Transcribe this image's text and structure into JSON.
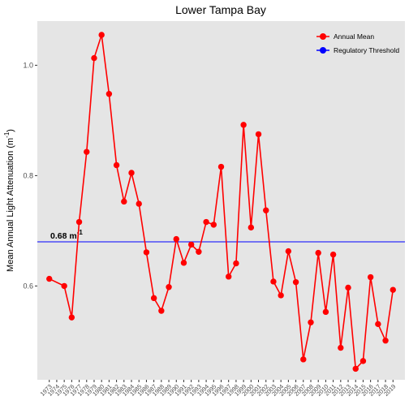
{
  "chart_data": {
    "type": "line",
    "title": "Lower Tampa Bay",
    "xlabel": "",
    "ylabel": "Mean Annual Light Attenuation (m",
    "ylabel_sup": "-1",
    "ylabel_close": ")",
    "x": [
      1974,
      1975,
      1976,
      1977,
      1978,
      1979,
      1980,
      1981,
      1982,
      1983,
      1984,
      1985,
      1986,
      1987,
      1988,
      1989,
      1990,
      1991,
      1992,
      1993,
      1994,
      1995,
      1996,
      1997,
      1998,
      1999,
      2000,
      2001,
      2002,
      2003,
      2004,
      2005,
      2006,
      2007,
      2008,
      2009,
      2010,
      2011,
      2012,
      2013,
      2014,
      2015,
      2016,
      2017,
      2018
    ],
    "x_tick_labels": [
      "1973",
      "1974",
      "1975",
      "1976",
      "1977",
      "1978",
      "1979",
      "1980",
      "1981",
      "1982",
      "1983",
      "1984",
      "1985",
      "1986",
      "1987",
      "1988",
      "1989",
      "1990",
      "1991",
      "1992",
      "1993",
      "1994",
      "1995",
      "1996",
      "1997",
      "1998",
      "1999",
      "2000",
      "2001",
      "2002",
      "2003",
      "2004",
      "2005",
      "2006",
      "2007",
      "2008",
      "2009",
      "2010",
      "2011",
      "2012",
      "2013",
      "2014",
      "2015",
      "2016",
      "2017",
      "2018",
      "2019"
    ],
    "x_tick_values": [
      1973,
      1974,
      1975,
      1976,
      1977,
      1978,
      1979,
      1980,
      1981,
      1982,
      1983,
      1984,
      1985,
      1986,
      1987,
      1988,
      1989,
      1990,
      1991,
      1992,
      1993,
      1994,
      1995,
      1996,
      1997,
      1998,
      1999,
      2000,
      2001,
      2002,
      2003,
      2004,
      2005,
      2006,
      2007,
      2008,
      2009,
      2010,
      2011,
      2012,
      2013,
      2014,
      2015,
      2016,
      2017,
      2018,
      2019
    ],
    "xlim": [
      1971.4,
      2020.6
    ],
    "ylim": [
      0.43,
      1.08
    ],
    "y_ticks": [
      0.6,
      0.8,
      1.0
    ],
    "y_tick_labels": [
      "0.6",
      "0.8",
      "1.0"
    ],
    "series": [
      {
        "name": "Annual Mean",
        "color": "#ff0000",
        "x": [
          1973,
          1975,
          1976,
          1977,
          1978,
          1979,
          1980,
          1981,
          1982,
          1983,
          1984,
          1985,
          1986,
          1987,
          1988,
          1989,
          1990,
          1991,
          1992,
          1993,
          1994,
          1995,
          1996,
          1997,
          1998,
          1999,
          2000,
          2001,
          2002,
          2003,
          2004,
          2005,
          2006,
          2007,
          2008,
          2009,
          2010,
          2011,
          2012,
          2013,
          2014,
          2015,
          2016,
          2017,
          2018,
          2019
        ],
        "values": [
          0.613,
          0.6,
          0.543,
          0.716,
          0.843,
          1.013,
          1.055,
          0.948,
          0.819,
          0.753,
          0.805,
          0.749,
          0.661,
          0.578,
          0.555,
          0.598,
          0.685,
          0.642,
          0.675,
          0.662,
          0.716,
          0.711,
          0.816,
          0.617,
          0.641,
          0.892,
          0.706,
          0.875,
          0.737,
          0.608,
          0.583,
          0.663,
          0.607,
          0.467,
          0.534,
          0.66,
          0.553,
          0.657,
          0.488,
          0.597,
          0.45,
          0.464,
          0.616,
          0.531,
          0.501,
          0.593
        ]
      }
    ],
    "threshold": {
      "name": "Regulatory Threshold",
      "color": "#0000ff",
      "value": 0.68,
      "label": "0.68 m",
      "label_sup": "-1"
    },
    "legend": {
      "position": "top-right",
      "entries": [
        "Annual Mean",
        "Regulatory Threshold"
      ]
    },
    "grid": false,
    "panel_background": "#e5e5e5"
  }
}
